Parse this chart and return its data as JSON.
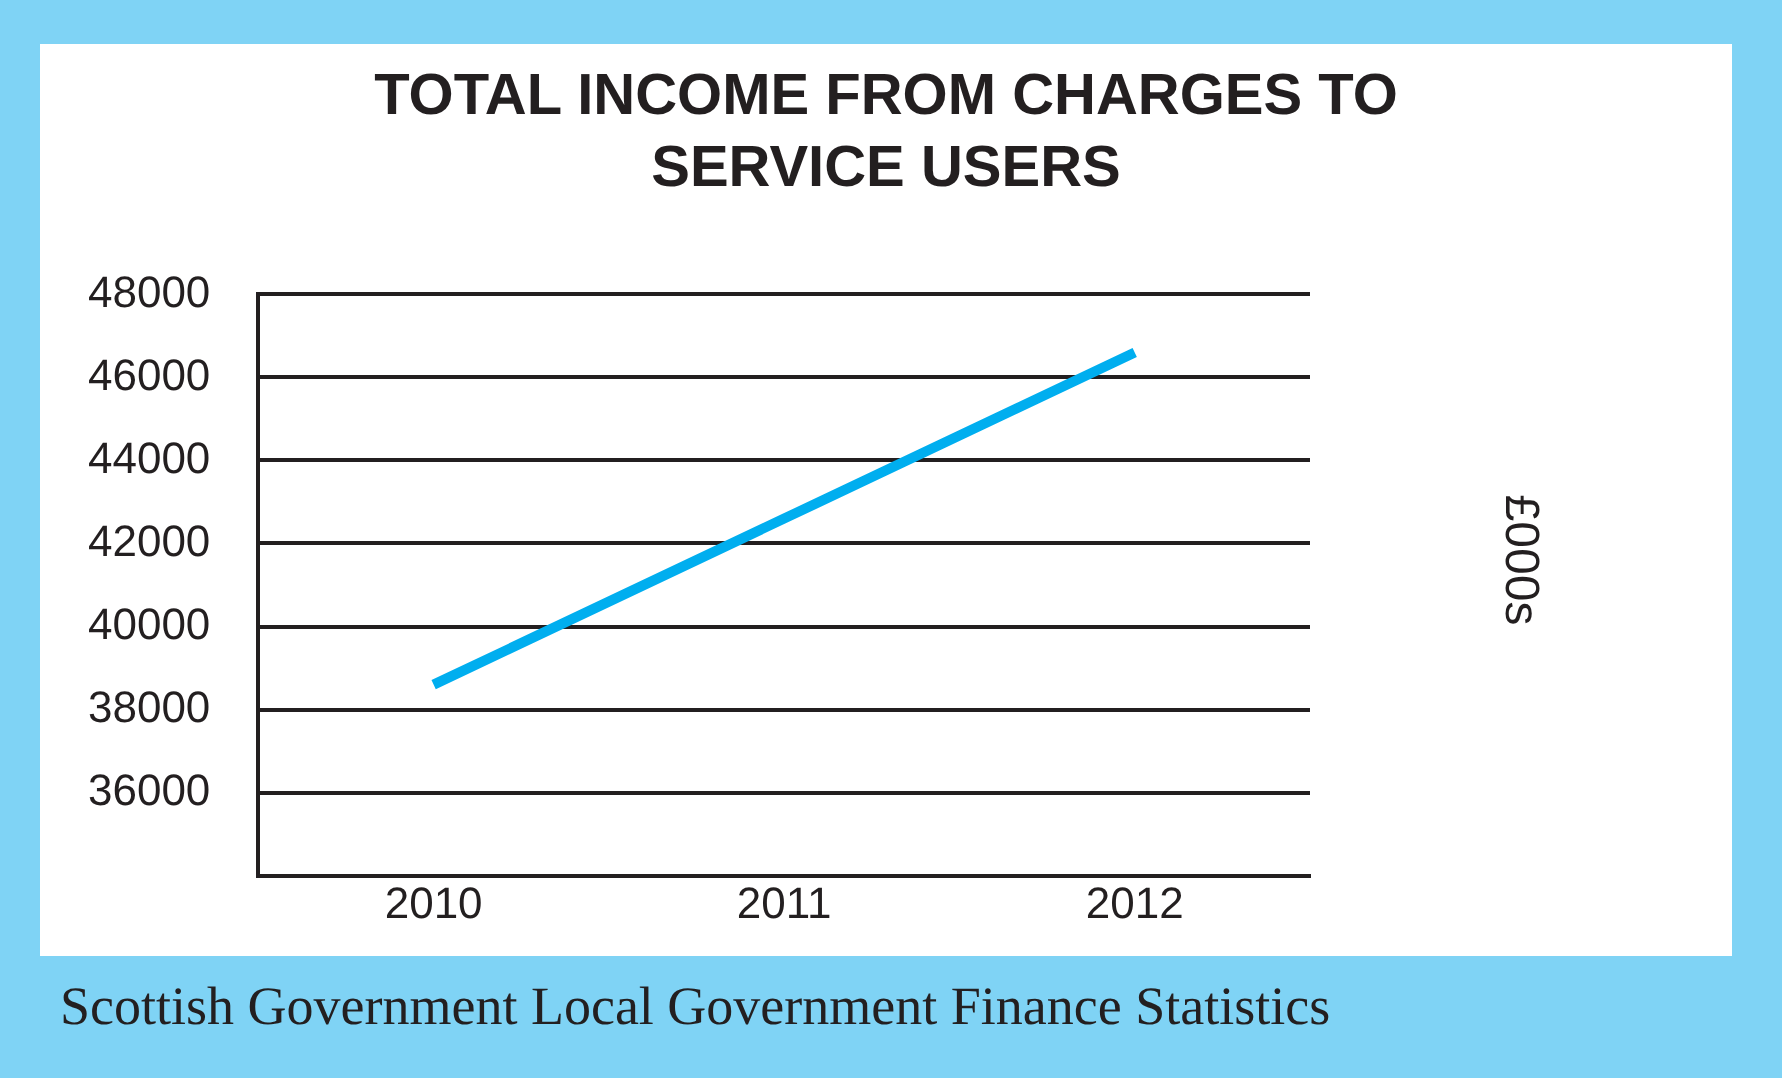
{
  "chart_data": {
    "type": "line",
    "title": "TOTAL INCOME FROM CHARGES TO SERVICE USERS",
    "ylabel": "£000s",
    "categories": [
      "2010",
      "2011",
      "2012"
    ],
    "series": [
      {
        "color": "#00aeef",
        "values": [
          38600,
          42600,
          46600
        ]
      }
    ],
    "ylim": [
      34000,
      48000
    ],
    "yticks": [
      36000,
      38000,
      40000,
      42000,
      44000,
      46000,
      48000
    ],
    "grid": "y",
    "legend": false,
    "marker": "none",
    "line_style": "solid",
    "annotations": [
      "Scottish Government Local Government Finance Statistics"
    ]
  }
}
